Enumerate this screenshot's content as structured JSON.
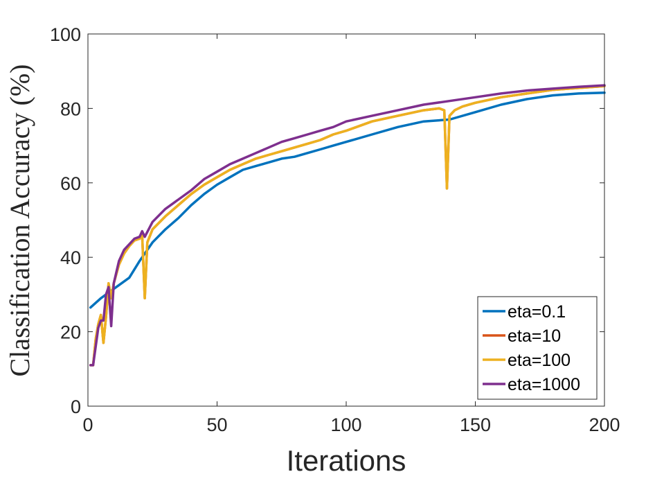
{
  "chart_data": {
    "type": "line",
    "title": "",
    "xlabel": "Iterations",
    "ylabel": "Classification Accuracy (%)",
    "xlim": [
      0,
      200
    ],
    "ylim": [
      0,
      100
    ],
    "xticks": [
      0,
      50,
      100,
      150,
      200
    ],
    "yticks": [
      0,
      20,
      40,
      60,
      80,
      100
    ],
    "xtick_labels": [
      "0",
      "50",
      "100",
      "150",
      "200"
    ],
    "ytick_labels": [
      "0",
      "20",
      "40",
      "60",
      "80",
      "100"
    ],
    "grid": false,
    "legend_position": "bottom-right",
    "series": [
      {
        "name": "eta=0.1",
        "color": "#0072BD",
        "x": [
          1,
          5,
          10,
          16,
          20,
          25,
          30,
          35,
          40,
          45,
          50,
          55,
          60,
          65,
          70,
          75,
          80,
          85,
          90,
          95,
          100,
          110,
          120,
          130,
          140,
          150,
          160,
          170,
          180,
          190,
          200
        ],
        "y": [
          26.5,
          29,
          31.5,
          34.5,
          39,
          44,
          47.5,
          50.5,
          54,
          57,
          59.5,
          61.5,
          63.5,
          64.5,
          65.5,
          66.5,
          67,
          68,
          69,
          70,
          71,
          73,
          75,
          76.5,
          77,
          79,
          81,
          82.5,
          83.5,
          84,
          84.2
        ]
      },
      {
        "name": "eta=10",
        "color": "#D95319",
        "x": [
          1,
          2,
          3,
          4,
          5,
          6,
          7,
          8,
          9,
          10,
          12,
          14,
          16,
          18,
          20,
          21,
          22,
          23,
          25,
          30,
          35,
          40,
          45,
          50,
          55,
          60,
          65,
          70,
          75,
          80,
          85,
          90,
          95,
          100,
          110,
          120,
          130,
          136,
          138,
          139,
          140,
          142,
          145,
          150,
          160,
          170,
          180,
          190,
          200
        ],
        "y": [
          11,
          11,
          18,
          22,
          24.5,
          17,
          24,
          33,
          29,
          33,
          38,
          41,
          43,
          44.5,
          45,
          46,
          29,
          44,
          47.5,
          51,
          54,
          57,
          59.5,
          61.5,
          63.5,
          65,
          66.5,
          67.5,
          68.5,
          69.5,
          70.5,
          71.5,
          73,
          74,
          76.5,
          78,
          79.5,
          80,
          79.5,
          58.5,
          78,
          79.5,
          80.5,
          81.5,
          83,
          84,
          85,
          85.5,
          86
        ]
      },
      {
        "name": "eta=100",
        "color": "#EDB120",
        "x": [
          1,
          2,
          3,
          4,
          5,
          6,
          7,
          8,
          9,
          10,
          12,
          14,
          16,
          18,
          20,
          21,
          22,
          23,
          25,
          30,
          35,
          40,
          45,
          50,
          55,
          60,
          65,
          70,
          75,
          80,
          85,
          90,
          95,
          100,
          110,
          120,
          130,
          136,
          138,
          139,
          140,
          142,
          145,
          150,
          160,
          170,
          180,
          190,
          200
        ],
        "y": [
          11,
          11,
          18,
          22,
          24.5,
          17,
          24,
          33,
          29,
          33,
          38,
          41,
          43,
          44.5,
          45,
          46,
          29,
          44,
          47.5,
          51,
          54,
          57,
          59.5,
          61.5,
          63.5,
          65,
          66.5,
          67.5,
          68.5,
          69.5,
          70.5,
          71.5,
          73,
          74,
          76.5,
          78,
          79.5,
          80,
          79.5,
          58.5,
          78,
          79.5,
          80.5,
          81.5,
          83,
          84,
          85,
          85.5,
          86
        ]
      },
      {
        "name": "eta=1000",
        "color": "#7E2F8E",
        "x": [
          1,
          2,
          3,
          4,
          5,
          6,
          7,
          8,
          9,
          10,
          12,
          14,
          16,
          18,
          20,
          21,
          22,
          25,
          30,
          35,
          40,
          45,
          50,
          55,
          60,
          65,
          70,
          75,
          80,
          85,
          90,
          95,
          100,
          110,
          120,
          130,
          140,
          150,
          160,
          170,
          180,
          190,
          200
        ],
        "y": [
          11,
          11,
          16,
          21,
          23,
          23,
          30,
          32,
          21.5,
          33,
          39,
          42,
          43.5,
          45,
          45.5,
          47,
          45.5,
          49.5,
          53,
          55.5,
          58,
          61,
          63,
          65,
          66.5,
          68,
          69.5,
          71,
          72,
          73,
          74,
          75,
          76.5,
          78,
          79.5,
          81,
          82,
          83,
          84,
          84.8,
          85.3,
          85.8,
          86.2
        ]
      }
    ]
  }
}
